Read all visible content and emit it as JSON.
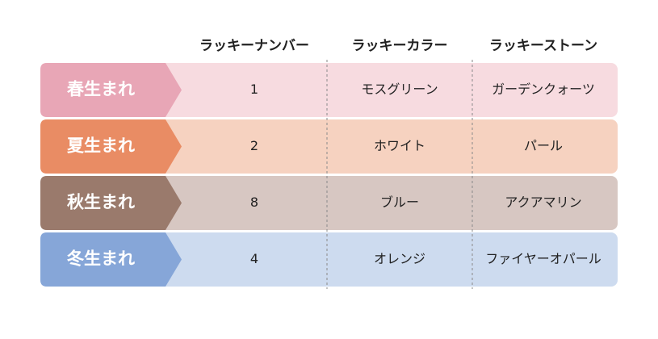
{
  "table": {
    "header": [
      "ラッキーナンバー",
      "ラッキーカラー",
      "ラッキーストーン"
    ],
    "rows": [
      [
        "春生まれ",
        1,
        "モスグリーン",
        "ガーデンクォーツ"
      ],
      [
        "夏生まれ",
        2,
        "ホワイト",
        "パール"
      ],
      [
        "秋生まれ",
        8,
        "ブルー",
        "アクアマリン"
      ],
      [
        "冬生まれ",
        4,
        "オレンジ",
        "ファイヤーオパール"
      ]
    ]
  }
}
